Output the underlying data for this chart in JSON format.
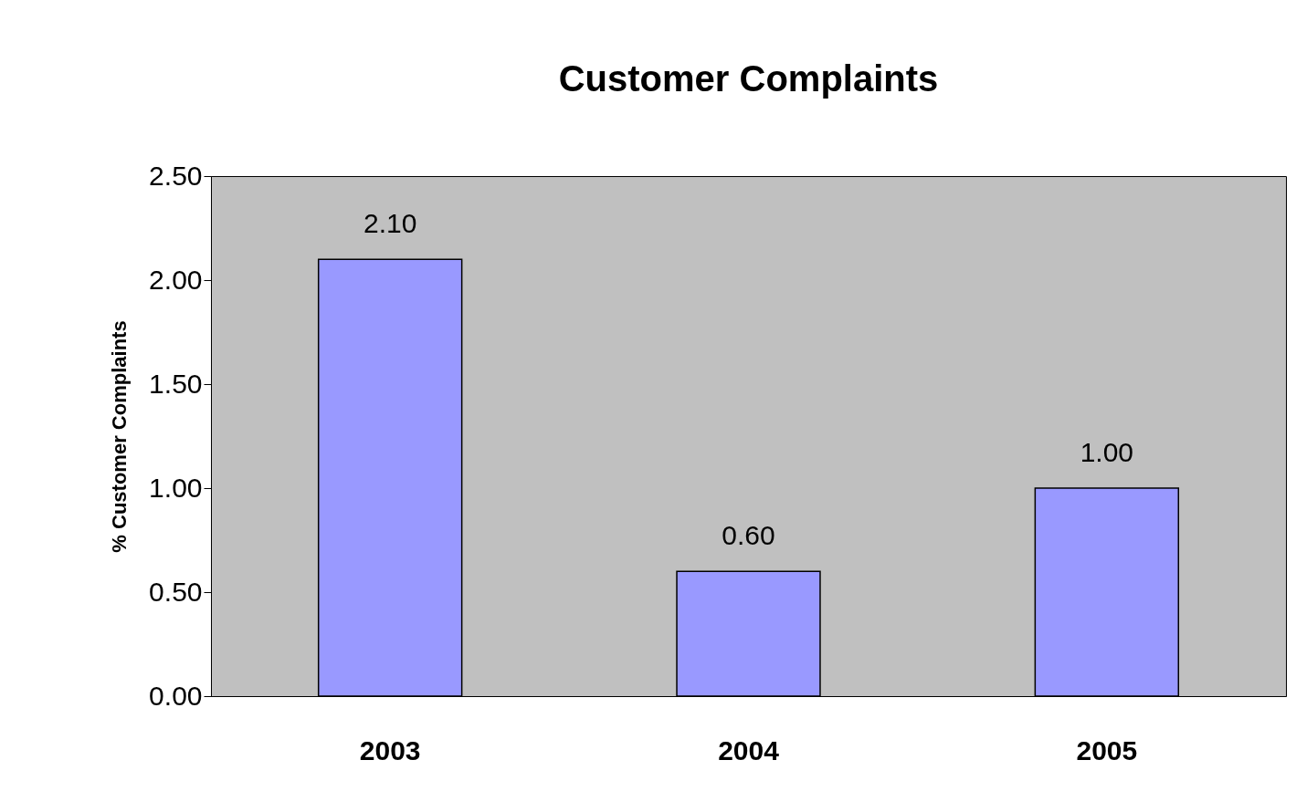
{
  "chart_data": {
    "type": "bar",
    "title": "Customer Complaints",
    "ylabel": "% Customer Complaints",
    "categories": [
      "2003",
      "2004",
      "2005"
    ],
    "values": [
      2.1,
      0.6,
      1.0
    ],
    "value_labels": [
      "2.10",
      "0.60",
      "1.00"
    ],
    "color": "#9999ff",
    "ylim": [
      0,
      2.5
    ],
    "yticks": [
      {
        "value": 0,
        "label": "0.00"
      },
      {
        "value": 0.5,
        "label": "0.50"
      },
      {
        "value": 1,
        "label": "1.00"
      },
      {
        "value": 1.5,
        "label": "1.50"
      },
      {
        "value": 2,
        "label": "2.00"
      },
      {
        "value": 2.5,
        "label": "2.50"
      }
    ],
    "grid": false
  }
}
